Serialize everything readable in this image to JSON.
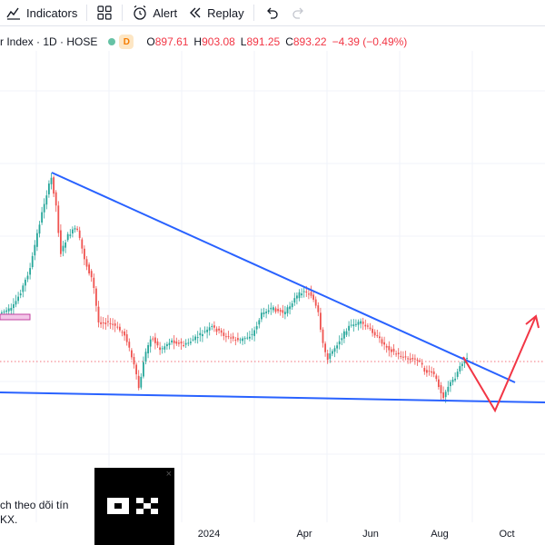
{
  "toolbar": {
    "indicators_label": "Indicators",
    "alert_label": "Alert",
    "replay_label": "Replay"
  },
  "legend": {
    "symbol": "r Index · 1D · HOSE",
    "badge": "D",
    "open_key": "O",
    "open": "897.61",
    "high_key": "H",
    "high": "903.08",
    "low_key": "L",
    "low": "891.25",
    "close_key": "C",
    "close": "893.22",
    "change": "−4.39 (−0.49%)"
  },
  "time_axis": [
    "2024",
    "Apr",
    "Jun",
    "Aug",
    "Oct"
  ],
  "ad": {
    "line1": "ch theo dõi tín",
    "line2": "KX.",
    "close": "×",
    "logo_text": "OKX"
  },
  "colors": {
    "up": "#26a69a",
    "down": "#ef5350",
    "trendline": "#2962ff",
    "projection": "#f23645",
    "price_line": "#f23645"
  }
}
